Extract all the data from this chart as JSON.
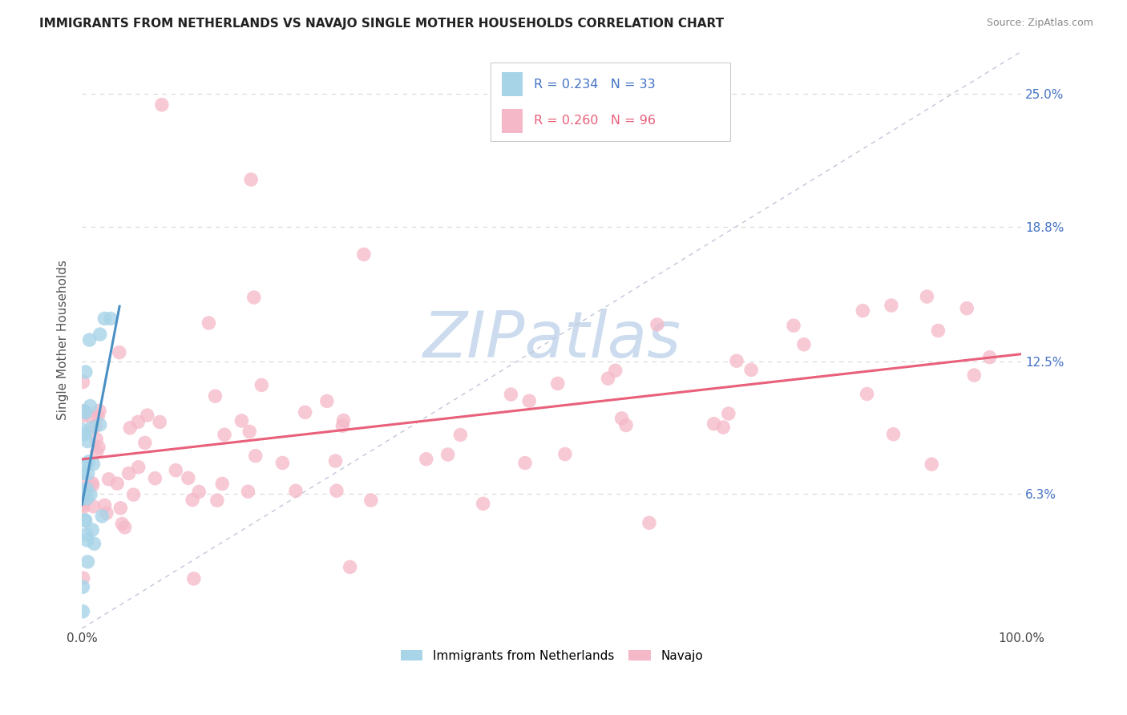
{
  "title": "IMMIGRANTS FROM NETHERLANDS VS NAVAJO SINGLE MOTHER HOUSEHOLDS CORRELATION CHART",
  "source": "Source: ZipAtlas.com",
  "ylabel": "Single Mother Households",
  "ytick_labels": [
    "6.3%",
    "12.5%",
    "18.8%",
    "25.0%"
  ],
  "ytick_values": [
    0.063,
    0.125,
    0.188,
    0.25
  ],
  "legend_label1": "Immigrants from Netherlands",
  "legend_label2": "Navajo",
  "legend_R1": "R = 0.234",
  "legend_N1": "N = 33",
  "legend_R2": "R = 0.260",
  "legend_N2": "N = 96",
  "color_blue": "#a8d4e8",
  "color_pink": "#f5b8c8",
  "trend_blue": "#4a90c4",
  "trend_pink": "#e8607a",
  "bg_color": "#ffffff",
  "watermark_color": "#ccdcee",
  "title_color": "#222222",
  "source_color": "#888888",
  "ytick_color": "#4472c4",
  "grid_color": "#d8d8d8",
  "diag_color": "#c0c8d8",
  "xlim": [
    0.0,
    1.0
  ],
  "ylim": [
    0.0,
    0.27
  ]
}
